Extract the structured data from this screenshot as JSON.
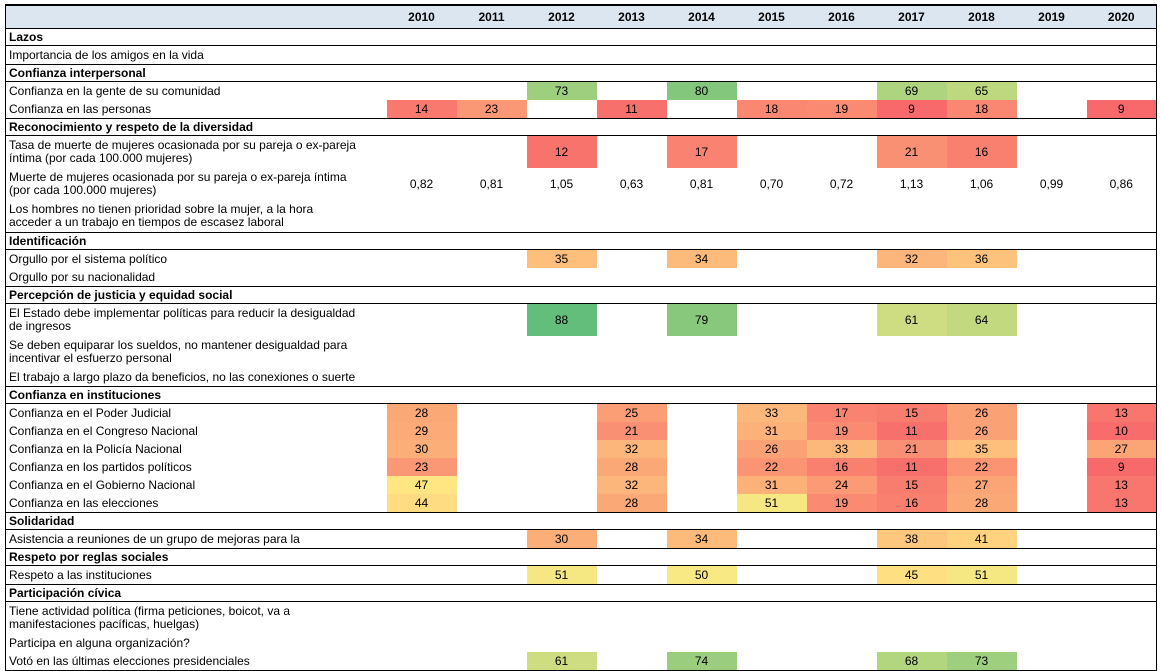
{
  "chart_data": {
    "type": "heatmap",
    "years": [
      "2010",
      "2011",
      "2012",
      "2013",
      "2014",
      "2015",
      "2016",
      "2017",
      "2018",
      "2019",
      "2020"
    ],
    "color_scale": {
      "min": {
        "value": 9,
        "color": "#F8696B"
      },
      "mid": {
        "value": 48.5,
        "color": "#FFEB84"
      },
      "max": {
        "value": 88,
        "color": "#63BE7B"
      }
    },
    "rows": [
      {
        "type": "section",
        "label": "Lazos"
      },
      {
        "type": "indicator",
        "label": "Importancia de los amigos en la vida",
        "heat": true,
        "values": [
          null,
          null,
          null,
          null,
          null,
          null,
          null,
          null,
          null,
          null,
          null
        ]
      },
      {
        "type": "section",
        "label": "Confianza interpersonal"
      },
      {
        "type": "indicator",
        "label": "Confianza en la gente de su comunidad",
        "heat": true,
        "values": [
          null,
          null,
          73,
          null,
          80,
          null,
          null,
          69,
          65,
          null,
          null
        ]
      },
      {
        "type": "indicator",
        "label": "Confianza en las personas",
        "heat": true,
        "values": [
          14,
          23,
          null,
          11,
          null,
          18,
          19,
          9,
          18,
          null,
          9
        ]
      },
      {
        "type": "section",
        "label": "Reconocimiento y respeto de la diversidad"
      },
      {
        "type": "indicator",
        "label": "Tasa de muerte de mujeres ocasionada por su pareja o ex-pareja íntima (por cada 100.000 mujeres)",
        "label_lines": [
          "Tasa de muerte de mujeres ocasionada por su pareja o ex-pareja",
          "íntima (por cada 100.000 mujeres)"
        ],
        "heat": true,
        "values": [
          null,
          null,
          12,
          null,
          17,
          null,
          null,
          21,
          16,
          null,
          null
        ]
      },
      {
        "type": "indicator",
        "label": "Muerte de mujeres ocasionada por su pareja o ex-pareja íntima (por cada 100.000 mujeres)",
        "label_lines": [
          "Muerte de mujeres ocasionada por su pareja o ex-pareja íntima",
          "(por cada 100.000 mujeres)"
        ],
        "heat": false,
        "values": [
          "0,82",
          "0,81",
          "1,05",
          "0,63",
          "0,81",
          "0,70",
          "0,72",
          "1,13",
          "1,06",
          "0,99",
          "0,86"
        ]
      },
      {
        "type": "indicator",
        "label": "Los hombres no tienen prioridad sobre la mujer, a la hora acceder a un trabajo en tiempos de escasez laboral",
        "label_lines": [
          "Los hombres no tienen prioridad sobre la mujer, a la hora",
          "acceder a un trabajo en tiempos de escasez laboral"
        ],
        "heat": true,
        "values": [
          null,
          null,
          null,
          null,
          null,
          null,
          null,
          null,
          null,
          null,
          null
        ]
      },
      {
        "type": "section",
        "label": "Identificación"
      },
      {
        "type": "indicator",
        "label": "Orgullo por el sistema político",
        "heat": true,
        "values": [
          null,
          null,
          35,
          null,
          34,
          null,
          null,
          32,
          36,
          null,
          null
        ]
      },
      {
        "type": "indicator",
        "label": "Orgullo por su nacionalidad",
        "heat": true,
        "values": [
          null,
          null,
          null,
          null,
          null,
          null,
          null,
          null,
          null,
          null,
          null
        ]
      },
      {
        "type": "section",
        "label": "Percepción de justicia y equidad social"
      },
      {
        "type": "indicator",
        "label": "El Estado debe implementar políticas para reducir la desigualdad de ingresos",
        "label_lines": [
          "El Estado debe implementar políticas para reducir la desigualdad",
          "de ingresos"
        ],
        "heat": true,
        "values": [
          null,
          null,
          88,
          null,
          79,
          null,
          null,
          61,
          64,
          null,
          null
        ]
      },
      {
        "type": "indicator",
        "label": "Se deben equiparar los sueldos, no mantener desigualdad para incentivar el esfuerzo personal",
        "label_lines": [
          "Se deben equiparar los sueldos, no mantener desigualdad para",
          "incentivar el esfuerzo personal"
        ],
        "heat": true,
        "values": [
          null,
          null,
          null,
          null,
          null,
          null,
          null,
          null,
          null,
          null,
          null
        ]
      },
      {
        "type": "indicator",
        "label": "El trabajo a largo plazo da beneficios, no las conexiones o suerte",
        "heat": true,
        "values": [
          null,
          null,
          null,
          null,
          null,
          null,
          null,
          null,
          null,
          null,
          null
        ]
      },
      {
        "type": "section",
        "label": "Confianza en instituciones"
      },
      {
        "type": "indicator",
        "label": "Confianza en el Poder Judicial",
        "heat": true,
        "values": [
          28,
          null,
          null,
          25,
          null,
          33,
          17,
          15,
          26,
          null,
          13
        ]
      },
      {
        "type": "indicator",
        "label": "Confianza en el Congreso Nacional",
        "heat": true,
        "values": [
          29,
          null,
          null,
          21,
          null,
          31,
          19,
          11,
          26,
          null,
          10
        ]
      },
      {
        "type": "indicator",
        "label": "Confianza en la Policía Nacional",
        "heat": true,
        "values": [
          30,
          null,
          null,
          32,
          null,
          26,
          33,
          21,
          35,
          null,
          27
        ]
      },
      {
        "type": "indicator",
        "label": "Confianza en los partidos políticos",
        "heat": true,
        "values": [
          23,
          null,
          null,
          28,
          null,
          22,
          16,
          11,
          22,
          null,
          9
        ]
      },
      {
        "type": "indicator",
        "label": "Confianza en el Gobierno Nacional",
        "heat": true,
        "values": [
          47,
          null,
          null,
          32,
          null,
          31,
          24,
          15,
          27,
          null,
          13
        ]
      },
      {
        "type": "indicator",
        "label": "Confianza en las elecciones",
        "heat": true,
        "values": [
          44,
          null,
          null,
          28,
          null,
          51,
          19,
          16,
          28,
          null,
          13
        ]
      },
      {
        "type": "section",
        "label": "Solidaridad"
      },
      {
        "type": "indicator",
        "label": "Asistencia a reuniones de un grupo de mejoras para la",
        "heat": true,
        "values": [
          null,
          null,
          30,
          null,
          34,
          null,
          null,
          38,
          41,
          null,
          null
        ]
      },
      {
        "type": "section",
        "label": "Respeto por reglas sociales"
      },
      {
        "type": "indicator",
        "label": "Respeto a las instituciones",
        "heat": true,
        "values": [
          null,
          null,
          51,
          null,
          50,
          null,
          null,
          45,
          51,
          null,
          null
        ]
      },
      {
        "type": "section",
        "label": "Participación cívica"
      },
      {
        "type": "indicator",
        "label": "Tiene actividad política (firma peticiones, boicot, va a manifestaciones pacíficas, huelgas)",
        "label_lines": [
          "Tiene actividad política (firma peticiones, boicot, va a",
          "manifestaciones pacíficas, huelgas)"
        ],
        "heat": true,
        "values": [
          null,
          null,
          null,
          null,
          null,
          null,
          null,
          null,
          null,
          null,
          null
        ]
      },
      {
        "type": "indicator",
        "label": "Participa en alguna organización?",
        "heat": true,
        "values": [
          null,
          null,
          null,
          null,
          null,
          null,
          null,
          null,
          null,
          null,
          null
        ]
      },
      {
        "type": "indicator",
        "label": "Votó en las últimas elecciones presidenciales",
        "heat": true,
        "values": [
          null,
          null,
          61,
          null,
          74,
          null,
          null,
          68,
          73,
          null,
          null
        ]
      }
    ],
    "layout": {
      "header_background": "#DCE6F1",
      "border_color": "#000000",
      "empty_cell_background": "#FFFFFF"
    }
  }
}
